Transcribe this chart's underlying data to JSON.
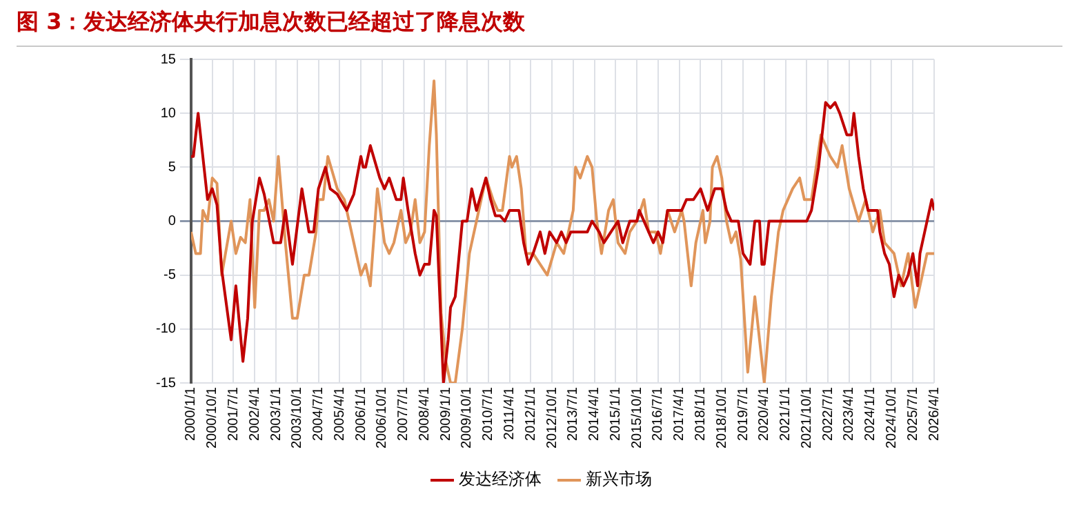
{
  "chart_data": {
    "type": "line",
    "title": "图 3：发达经济体央行加息次数已经超过了降息次数",
    "xlim": [
      "2000-01",
      "2026-04"
    ],
    "xticks": [
      {
        "value": "2000-01",
        "label": "2000/1/1"
      },
      {
        "value": "2000-10",
        "label": "2000/10/1"
      },
      {
        "value": "2001-07",
        "label": "2001/7/1"
      },
      {
        "value": "2002-04",
        "label": "2002/4/1"
      },
      {
        "value": "2003-01",
        "label": "2003/1/1"
      },
      {
        "value": "2003-10",
        "label": "2003/10/1"
      },
      {
        "value": "2004-07",
        "label": "2004/7/1"
      },
      {
        "value": "2005-04",
        "label": "2005/4/1"
      },
      {
        "value": "2006-01",
        "label": "2006/1/1"
      },
      {
        "value": "2006-10",
        "label": "2006/10/1"
      },
      {
        "value": "2007-07",
        "label": "2007/7/1"
      },
      {
        "value": "2008-04",
        "label": "2008/4/1"
      },
      {
        "value": "2009-01",
        "label": "2009/1/1"
      },
      {
        "value": "2009-10",
        "label": "2009/10/1"
      },
      {
        "value": "2010-07",
        "label": "2010/7/1"
      },
      {
        "value": "2011-04",
        "label": "2011/4/1"
      },
      {
        "value": "2012-01",
        "label": "2012/1/1"
      },
      {
        "value": "2012-10",
        "label": "2012/10/1"
      },
      {
        "value": "2013-07",
        "label": "2013/7/1"
      },
      {
        "value": "2014-04",
        "label": "2014/4/1"
      },
      {
        "value": "2015-01",
        "label": "2015/1/1"
      },
      {
        "value": "2015-10",
        "label": "2015/10/1"
      },
      {
        "value": "2016-07",
        "label": "2016/7/1"
      },
      {
        "value": "2017-04",
        "label": "2017/4/1"
      },
      {
        "value": "2018-01",
        "label": "2018/1/1"
      },
      {
        "value": "2018-10",
        "label": "2018/10/1"
      },
      {
        "value": "2019-07",
        "label": "2019/7/1"
      },
      {
        "value": "2020-04",
        "label": "2020/4/1"
      },
      {
        "value": "2021-01",
        "label": "2021/1/1"
      },
      {
        "value": "2021-10",
        "label": "2021/10/1"
      },
      {
        "value": "2022-07",
        "label": "2022/7/1"
      },
      {
        "value": "2023-04",
        "label": "2023/4/1"
      },
      {
        "value": "2024-01",
        "label": "2024/1/1"
      },
      {
        "value": "2024-10",
        "label": "2024/10/1"
      },
      {
        "value": "2025-07",
        "label": "2025/7/1"
      },
      {
        "value": "2026-04",
        "label": "2026/4/1"
      }
    ],
    "ylim": [
      -15,
      15
    ],
    "yticks": [
      -15,
      -10,
      -5,
      0,
      5,
      10,
      15
    ],
    "grid": true,
    "legend": "bottom",
    "marker": "none",
    "line_style": "solid",
    "series": [
      {
        "name": "发达经济体",
        "color": "#c00000",
        "x": [
          "2000-01",
          "2000-02",
          "2000-04",
          "2000-08",
          "2000-10",
          "2000-12",
          "2001-02",
          "2001-06",
          "2001-08",
          "2001-11",
          "2002-01",
          "2002-03",
          "2002-06",
          "2002-08",
          "2002-12",
          "2003-03",
          "2003-05",
          "2003-08",
          "2003-12",
          "2004-03",
          "2004-05",
          "2004-07",
          "2004-10",
          "2004-12",
          "2005-03",
          "2005-07",
          "2005-10",
          "2006-01",
          "2006-02",
          "2006-03",
          "2006-05",
          "2006-09",
          "2006-11",
          "2007-01",
          "2007-04",
          "2007-06",
          "2007-07",
          "2007-09",
          "2007-12",
          "2008-02",
          "2008-04",
          "2008-06",
          "2008-08",
          "2008-09",
          "2008-12",
          "2009-02",
          "2009-03",
          "2009-05",
          "2009-08",
          "2009-10",
          "2009-12",
          "2010-02",
          "2010-06",
          "2010-08",
          "2010-10",
          "2010-12",
          "2011-02",
          "2011-04",
          "2011-08",
          "2011-10",
          "2011-12",
          "2012-02",
          "2012-05",
          "2012-07",
          "2012-09",
          "2012-12",
          "2013-02",
          "2013-04",
          "2013-06",
          "2014-01",
          "2014-03",
          "2014-06",
          "2014-08",
          "2014-11",
          "2015-02",
          "2015-04",
          "2015-07",
          "2015-10",
          "2015-11",
          "2016-03",
          "2016-05",
          "2016-07",
          "2016-09",
          "2016-11",
          "2017-05",
          "2017-07",
          "2017-10",
          "2018-01",
          "2018-04",
          "2018-07",
          "2018-10",
          "2018-12",
          "2019-02",
          "2019-05",
          "2019-07",
          "2019-10",
          "2019-12",
          "2020-02",
          "2020-03",
          "2020-04",
          "2020-06",
          "2021-10",
          "2021-12",
          "2022-03",
          "2022-06",
          "2022-08",
          "2022-10",
          "2022-12",
          "2023-03",
          "2023-05",
          "2023-06",
          "2023-08",
          "2023-10",
          "2023-12",
          "2024-04",
          "2024-05",
          "2024-07",
          "2024-09",
          "2024-11",
          "2025-01",
          "2025-03",
          "2025-05",
          "2025-07",
          "2025-09",
          "2025-10",
          "2025-12",
          "2026-03",
          "2026-04"
        ],
        "values": [
          6,
          6,
          10,
          2,
          3,
          1.5,
          -4.5,
          -11,
          -6,
          -13,
          -9,
          0,
          4,
          2.5,
          -2,
          -2,
          1,
          -4,
          3,
          -1,
          -1,
          3,
          5,
          3,
          2.5,
          1,
          2.5,
          6,
          5,
          5,
          7,
          4,
          3,
          4,
          2,
          2,
          4,
          1,
          -3,
          -5,
          -4,
          -4,
          1,
          0.5,
          -15,
          -11,
          -8,
          -7,
          0,
          0,
          3,
          1,
          4,
          2,
          0.5,
          0.5,
          0,
          1,
          1,
          -2,
          -4,
          -3,
          -1,
          -3,
          -1,
          -2,
          -1,
          -2,
          -1,
          -1,
          0,
          -1,
          -2,
          -1,
          0,
          -2,
          0,
          0,
          1,
          -1,
          -2,
          -1,
          -2,
          1,
          1,
          2,
          2,
          3,
          1,
          3,
          3,
          1,
          0,
          0,
          -3,
          -4,
          0,
          0,
          -4,
          -4,
          0,
          0,
          1,
          5,
          11,
          10.5,
          11,
          10,
          8,
          8,
          10,
          6,
          3,
          1,
          1,
          -1,
          -3,
          -4,
          -7,
          -5,
          -6,
          -5,
          -3,
          -6,
          -3,
          -1,
          2,
          1
        ]
      },
      {
        "name": "新兴市场",
        "color": "#e0955a",
        "x": [
          "2000-01",
          "2000-03",
          "2000-05",
          "2000-06",
          "2000-08",
          "2000-10",
          "2000-12",
          "2001-02",
          "2001-06",
          "2001-08",
          "2001-10",
          "2001-12",
          "2002-02",
          "2002-04",
          "2002-06",
          "2002-08",
          "2002-10",
          "2002-12",
          "2003-02",
          "2003-05",
          "2003-08",
          "2003-10",
          "2004-01",
          "2004-03",
          "2004-06",
          "2004-07",
          "2004-09",
          "2004-11",
          "2005-03",
          "2005-06",
          "2005-10",
          "2006-01",
          "2006-03",
          "2006-05",
          "2006-08",
          "2006-11",
          "2007-01",
          "2007-03",
          "2007-06",
          "2007-08",
          "2007-10",
          "2007-12",
          "2008-02",
          "2008-04",
          "2008-06",
          "2008-08",
          "2008-09",
          "2008-11",
          "2009-01",
          "2009-03",
          "2009-05",
          "2009-08",
          "2009-11",
          "2010-02",
          "2010-06",
          "2010-09",
          "2010-11",
          "2011-01",
          "2011-04",
          "2011-05",
          "2011-07",
          "2011-09",
          "2011-11",
          "2012-02",
          "2012-05",
          "2012-08",
          "2012-12",
          "2013-03",
          "2013-05",
          "2013-07",
          "2013-08",
          "2013-10",
          "2014-01",
          "2014-03",
          "2014-05",
          "2014-07",
          "2014-10",
          "2014-12",
          "2015-02",
          "2015-05",
          "2015-07",
          "2015-10",
          "2016-01",
          "2016-03",
          "2016-06",
          "2016-08",
          "2016-11",
          "2017-02",
          "2017-05",
          "2017-06",
          "2017-09",
          "2017-11",
          "2018-02",
          "2018-03",
          "2018-05",
          "2018-06",
          "2018-08",
          "2018-10",
          "2018-12",
          "2019-02",
          "2019-04",
          "2019-06",
          "2019-09",
          "2019-12",
          "2020-04",
          "2020-07",
          "2020-10",
          "2020-12",
          "2021-04",
          "2021-07",
          "2021-09",
          "2021-12",
          "2022-04",
          "2022-08",
          "2022-11",
          "2023-01",
          "2023-04",
          "2023-08",
          "2023-11",
          "2024-02",
          "2024-05",
          "2024-07",
          "2024-11",
          "2025-02",
          "2025-05",
          "2025-08",
          "2025-10",
          "2026-01",
          "2026-04"
        ],
        "values": [
          -1,
          -3,
          -3,
          1,
          0,
          4,
          3.5,
          -5,
          0,
          -3,
          -1.5,
          -2,
          2,
          -8,
          1,
          1,
          2,
          0,
          6,
          -2,
          -9,
          -9,
          -5,
          -5,
          -1,
          2,
          2,
          6,
          3,
          2,
          -2,
          -5,
          -4,
          -6,
          3,
          -2,
          -3,
          -2,
          1,
          -2,
          -1,
          2,
          -2,
          -1,
          7,
          13,
          8,
          -8.5,
          -13,
          -15,
          -15,
          -10,
          -3,
          0,
          4,
          2,
          1,
          1,
          6,
          5,
          6,
          3,
          -3,
          -3,
          -4,
          -5,
          -2,
          -3,
          -1,
          1,
          5,
          4,
          6,
          5,
          0,
          -3,
          1,
          2,
          -2,
          -3,
          -1,
          0,
          2,
          -1,
          -1,
          -3,
          1,
          -1,
          1,
          0,
          -6,
          -2,
          1,
          -2,
          0,
          5,
          6,
          4,
          0,
          -2,
          -1,
          -3.5,
          -14,
          -7,
          -15,
          -7,
          -1,
          1,
          3,
          4,
          2,
          2,
          8,
          6,
          5,
          7,
          3,
          0,
          2,
          -1,
          1,
          -2,
          -3,
          -6,
          -3,
          -8,
          -6,
          -3,
          -3
        ]
      }
    ]
  }
}
